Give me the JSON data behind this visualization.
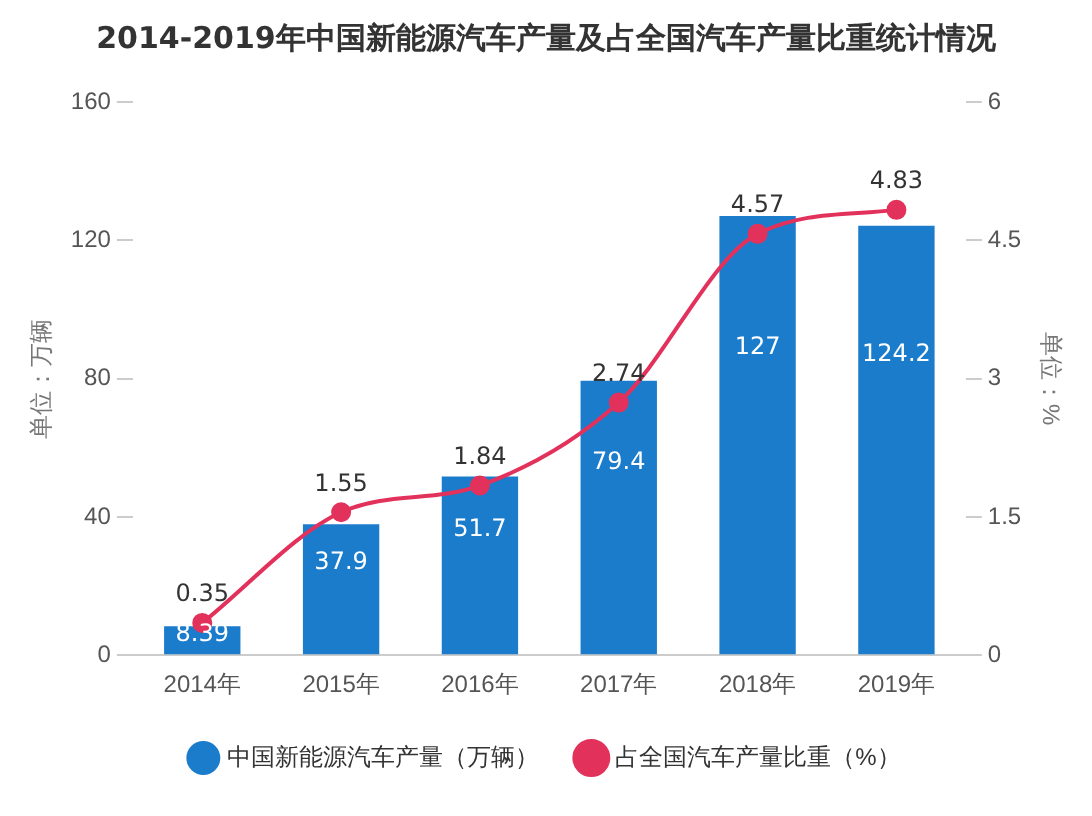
{
  "chart_data": {
    "type": "bar",
    "title": "2014-2019年中国新能源汽车产量及占全国汽车产量比重统计情况",
    "categories": [
      "2014年",
      "2015年",
      "2016年",
      "2017年",
      "2018年",
      "2019年"
    ],
    "series": [
      {
        "name": "中国新能源汽车产量（万辆）",
        "color": "#1b7ccb",
        "values": [
          8.39,
          37.9,
          51.7,
          79.4,
          127,
          124.2
        ]
      },
      {
        "name": "占全国汽车产量比重（%）",
        "type": "line",
        "axis": "y2",
        "color": "#e2325c",
        "marker": "circle",
        "values": [
          0.35,
          1.55,
          1.84,
          2.74,
          4.57,
          4.83
        ]
      }
    ],
    "ylabel": "单位：万辆",
    "y2label": "单位：%",
    "ylim": [
      0,
      160
    ],
    "yticks": [
      0,
      40,
      80,
      120,
      160
    ],
    "y2lim": [
      0,
      6
    ],
    "y2ticks": [
      0,
      1.5,
      3,
      4.5,
      6
    ],
    "data_labels": true,
    "grid": false,
    "legend": "bottom"
  }
}
